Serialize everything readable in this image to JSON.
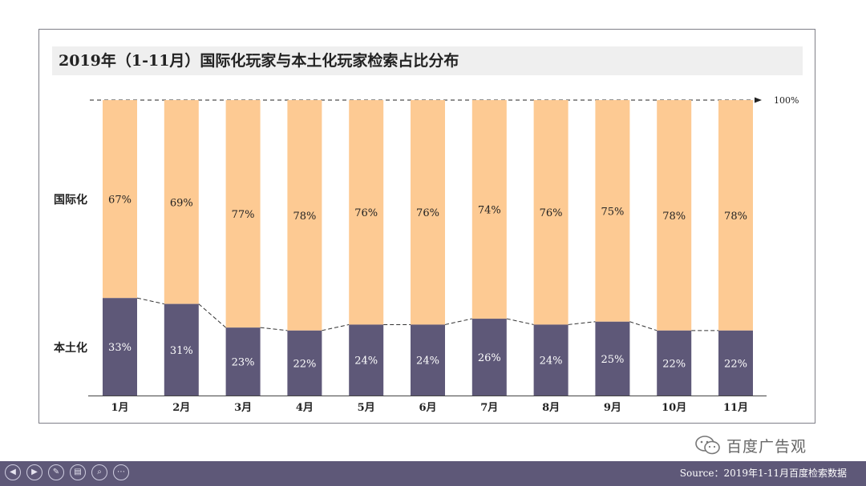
{
  "title": "2019年（1-11月）国际化玩家与本土化玩家检索占比分布",
  "reference_label": "100%",
  "row_labels": {
    "top": "国际化",
    "bottom": "本土化"
  },
  "watermark": "百度广告观",
  "source": "Source：2019年1-11月百度检索数据",
  "colors": {
    "international": "#fdca93",
    "local": "#5e5878",
    "footer": "#5e5878"
  },
  "controls": [
    {
      "name": "prev-icon",
      "glyph": "◀"
    },
    {
      "name": "next-icon",
      "glyph": "▶"
    },
    {
      "name": "pen-icon",
      "glyph": "✎"
    },
    {
      "name": "slides-icon",
      "glyph": "▤"
    },
    {
      "name": "zoom-icon",
      "glyph": "⌕"
    },
    {
      "name": "more-icon",
      "glyph": "⋯"
    }
  ],
  "chart_data": {
    "type": "bar",
    "stacked": true,
    "categories": [
      "1月",
      "2月",
      "3月",
      "4月",
      "5月",
      "6月",
      "7月",
      "8月",
      "9月",
      "10月",
      "11月"
    ],
    "series": [
      {
        "name": "本土化",
        "values": [
          33,
          31,
          23,
          22,
          24,
          24,
          26,
          24,
          25,
          22,
          22
        ]
      },
      {
        "name": "国际化",
        "values": [
          67,
          69,
          77,
          78,
          76,
          76,
          74,
          76,
          75,
          78,
          78
        ]
      }
    ],
    "ylim": [
      0,
      100
    ],
    "grid": false
  }
}
